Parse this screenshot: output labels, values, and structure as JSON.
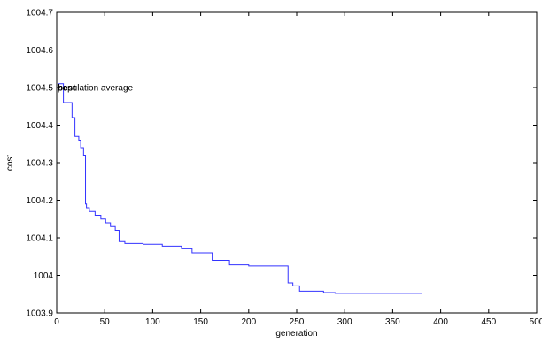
{
  "chart_data": {
    "type": "line",
    "title": "",
    "xlabel": "generation",
    "ylabel": "cost",
    "xlim": [
      0,
      500
    ],
    "ylim": [
      1003.9,
      1004.7
    ],
    "xticks": [
      0,
      50,
      100,
      150,
      200,
      250,
      300,
      350,
      400,
      450,
      500
    ],
    "xtick_labels": [
      "0",
      "50",
      "100",
      "150",
      "200",
      "250",
      "300",
      "350",
      "400",
      "450",
      "500"
    ],
    "yticks": [
      1003.9,
      1004,
      1004.1,
      1004.2,
      1004.3,
      1004.4,
      1004.5,
      1004.6,
      1004.7
    ],
    "ytick_labels": [
      "1003.9",
      "1004",
      "1004.1",
      "1004.2",
      "1004.3",
      "1004.4",
      "1004.5",
      "1004.6",
      "1004.7"
    ],
    "grid": false,
    "annotations": [
      {
        "text": "best",
        "x": 0,
        "y": 1004.5,
        "bold": true
      },
      {
        "text": "population average",
        "x": 0,
        "y": 1004.5,
        "bold": false
      }
    ],
    "series": [
      {
        "color": "#3333ff",
        "step": true,
        "x": [
          1,
          7,
          16,
          19,
          23,
          25,
          28,
          30,
          31,
          34,
          40,
          46,
          51,
          56,
          61,
          65,
          71,
          90,
          110,
          130,
          141,
          162,
          180,
          200,
          241,
          246,
          253,
          278,
          290,
          380,
          500
        ],
        "y": [
          1004.51,
          1004.46,
          1004.42,
          1004.37,
          1004.36,
          1004.34,
          1004.32,
          1004.19,
          1004.18,
          1004.17,
          1004.16,
          1004.15,
          1004.14,
          1004.13,
          1004.12,
          1004.09,
          1004.085,
          1004.083,
          1004.078,
          1004.071,
          1004.06,
          1004.04,
          1004.028,
          1004.025,
          1003.98,
          1003.972,
          1003.958,
          1003.954,
          1003.952,
          1003.953,
          1003.953
        ]
      }
    ]
  }
}
